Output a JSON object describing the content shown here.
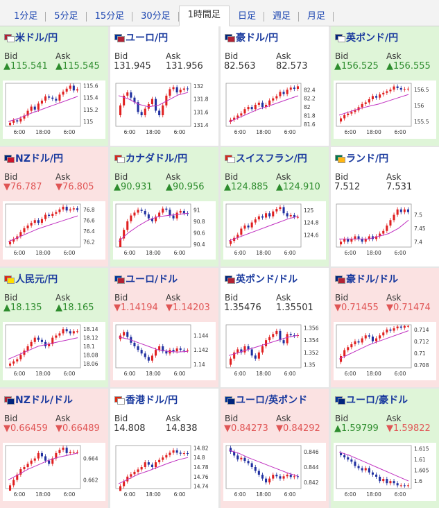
{
  "tabs": [
    {
      "label": "1分足",
      "active": false
    },
    {
      "label": "5分足",
      "active": false
    },
    {
      "label": "15分足",
      "active": false
    },
    {
      "label": "30分足",
      "active": false
    },
    {
      "label": "1時間足",
      "active": true
    },
    {
      "label": "日足",
      "active": false
    },
    {
      "label": "週足",
      "active": false
    },
    {
      "label": "月足",
      "active": false
    }
  ],
  "colors": {
    "up_bg": "#dff5d8",
    "down_bg": "#fbe2e2",
    "flat_bg": "#ffffff",
    "up_text": "#2d8c2d",
    "down_text": "#e05555",
    "title": "#1a3a9e",
    "candle_up": "#e02020",
    "candle_down": "#2030a0",
    "ma_line": "#c030c0"
  },
  "labels": {
    "bid": "Bid",
    "ask": "Ask"
  },
  "tiles": [
    {
      "name": "米ドル/円",
      "bid": "115.541",
      "ask": "115.545",
      "bid_dir": "up",
      "ask_dir": "up",
      "bg": "green",
      "flags": [
        "#b22234",
        "#ffffff"
      ],
      "chart_data": {
        "type": "candlestick",
        "x_ticks": [
          "6:00",
          "18:00",
          "6:00"
        ],
        "y_ticks": [
          "115.6",
          "115.4",
          "115.2",
          "115"
        ],
        "ylim": [
          114.92,
          115.64
        ],
        "closes": [
          114.98,
          115.02,
          115.0,
          115.05,
          115.1,
          115.18,
          115.25,
          115.2,
          115.3,
          115.35,
          115.42,
          115.4,
          115.38,
          115.35,
          115.45,
          115.5,
          115.55,
          115.6,
          115.52,
          115.54
        ],
        "ma": [
          115.0,
          115.05,
          115.12,
          115.18,
          115.24,
          115.3,
          115.36,
          115.42
        ]
      }
    },
    {
      "name": "ユーロ/円",
      "bid": "131.945",
      "ask": "131.956",
      "bid_dir": "flat",
      "ask_dir": "flat",
      "bg": "white",
      "flags": [
        "#003399",
        "#b22234"
      ],
      "chart_data": {
        "type": "candlestick",
        "x_ticks": [
          "6:00",
          "18:00",
          "6:00"
        ],
        "y_ticks": [
          "132",
          "131.8",
          "131.6",
          "131.4"
        ],
        "ylim": [
          131.38,
          132.04
        ],
        "closes": [
          131.7,
          131.85,
          131.9,
          131.82,
          131.75,
          131.6,
          131.55,
          131.65,
          131.72,
          131.8,
          131.62,
          131.55,
          131.7,
          131.85,
          131.95,
          131.98,
          131.9,
          131.94,
          131.96,
          131.95
        ],
        "ma": [
          131.85,
          131.8,
          131.72,
          131.68,
          131.7,
          131.78,
          131.86,
          131.9
        ]
      }
    },
    {
      "name": "豪ドル/円",
      "bid": "82.563",
      "ask": "82.573",
      "bid_dir": "flat",
      "ask_dir": "flat",
      "bg": "white",
      "flags": [
        "#00247d",
        "#b22234"
      ],
      "chart_data": {
        "type": "candlestick",
        "x_ticks": [
          "6:00",
          "18:00",
          "6:00"
        ],
        "y_ticks": [
          "82.4",
          "82.2",
          "82",
          "81.8",
          "81.6"
        ],
        "ylim": [
          81.55,
          82.55
        ],
        "closes": [
          81.7,
          81.75,
          81.8,
          81.85,
          81.95,
          82.0,
          81.95,
          82.05,
          82.1,
          82.0,
          82.05,
          82.15,
          82.2,
          82.25,
          82.35,
          82.3,
          82.4,
          82.45,
          82.42,
          82.48
        ],
        "ma": [
          81.65,
          81.75,
          81.85,
          81.95,
          82.02,
          82.1,
          82.18,
          82.26
        ]
      }
    },
    {
      "name": "英ポンド/円",
      "bid": "156.525",
      "ask": "156.555",
      "bid_dir": "up",
      "ask_dir": "up",
      "bg": "green",
      "flags": [
        "#00247d",
        "#ffffff"
      ],
      "chart_data": {
        "type": "candlestick",
        "x_ticks": [
          "6:00",
          "18:00",
          "6:00"
        ],
        "y_ticks": [
          "156.5",
          "156",
          "155.5"
        ],
        "ylim": [
          155.35,
          156.7
        ],
        "closes": [
          155.6,
          155.7,
          155.75,
          155.8,
          155.85,
          155.95,
          156.05,
          156.1,
          156.2,
          156.3,
          156.25,
          156.35,
          156.4,
          156.45,
          156.5,
          156.6,
          156.55,
          156.5,
          156.52,
          156.53
        ],
        "ma": [
          155.7,
          155.8,
          155.9,
          155.98,
          156.05,
          156.15,
          156.25,
          156.35
        ]
      }
    },
    {
      "name": "NZドル/円",
      "bid": "76.787",
      "ask": "76.805",
      "bid_dir": "down",
      "ask_dir": "down",
      "bg": "red",
      "flags": [
        "#00247d",
        "#cc142b"
      ],
      "chart_data": {
        "type": "candlestick",
        "x_ticks": [
          "6:00",
          "18:00",
          "6:00"
        ],
        "y_ticks": [
          "76.8",
          "76.6",
          "76.4",
          "76.2"
        ],
        "ylim": [
          76.1,
          76.9
        ],
        "closes": [
          76.2,
          76.25,
          76.3,
          76.38,
          76.45,
          76.5,
          76.55,
          76.6,
          76.55,
          76.62,
          76.7,
          76.68,
          76.72,
          76.75,
          76.8,
          76.85,
          76.78,
          76.8,
          76.82,
          76.79
        ],
        "ma": [
          76.2,
          76.28,
          76.36,
          76.44,
          76.5,
          76.56,
          76.62,
          76.68
        ]
      }
    },
    {
      "name": "カナダドル/円",
      "bid": "90.931",
      "ask": "90.956",
      "bid_dir": "up",
      "ask_dir": "up",
      "bg": "green",
      "flags": [
        "#d52b1e",
        "#ffffff"
      ],
      "chart_data": {
        "type": "candlestick",
        "x_ticks": [
          "6:00",
          "18:00",
          "6:00"
        ],
        "y_ticks": [
          "91",
          "90.8",
          "90.6",
          "90.4"
        ],
        "ylim": [
          90.35,
          91.1
        ],
        "closes": [
          90.5,
          90.65,
          90.8,
          90.9,
          90.95,
          91.0,
          90.98,
          90.92,
          90.85,
          90.8,
          90.88,
          90.95,
          91.02,
          91.0,
          90.9,
          90.85,
          90.95,
          90.98,
          90.94,
          90.93
        ],
        "ma": [
          90.45,
          90.6,
          90.72,
          90.82,
          90.88,
          90.9,
          90.92,
          90.94
        ]
      }
    },
    {
      "name": "スイスフラン/円",
      "bid": "124.885",
      "ask": "124.910",
      "bid_dir": "up",
      "ask_dir": "up",
      "bg": "green",
      "flags": [
        "#d52b1e",
        "#ffffff"
      ],
      "chart_data": {
        "type": "candlestick",
        "x_ticks": [
          "6:00",
          "18:00",
          "6:00"
        ],
        "y_ticks": [
          "125",
          "124.8",
          "124.6"
        ],
        "ylim": [
          124.4,
          125.1
        ],
        "closes": [
          124.5,
          124.55,
          124.6,
          124.7,
          124.75,
          124.72,
          124.8,
          124.85,
          124.9,
          124.88,
          124.95,
          124.9,
          124.98,
          125.02,
          125.05,
          124.95,
          124.9,
          124.92,
          124.89,
          124.89
        ],
        "ma": [
          124.5,
          124.56,
          124.62,
          124.68,
          124.74,
          124.8,
          124.86,
          124.9
        ]
      }
    },
    {
      "name": "ランド/円",
      "bid": "7.512",
      "ask": "7.531",
      "bid_dir": "flat",
      "ask_dir": "flat",
      "bg": "white",
      "flags": [
        "#007a4d",
        "#ffb612"
      ],
      "chart_data": {
        "type": "candlestick",
        "x_ticks": [
          "6:00",
          "18:00",
          "6:00"
        ],
        "y_ticks": [
          "7.5",
          "7.45",
          "7.4"
        ],
        "ylim": [
          7.38,
          7.54
        ],
        "closes": [
          7.4,
          7.41,
          7.4,
          7.41,
          7.42,
          7.41,
          7.4,
          7.41,
          7.42,
          7.41,
          7.42,
          7.43,
          7.44,
          7.46,
          7.48,
          7.5,
          7.52,
          7.51,
          7.52,
          7.51
        ],
        "ma": [
          7.41,
          7.41,
          7.41,
          7.41,
          7.42,
          7.43,
          7.45,
          7.48
        ]
      }
    },
    {
      "name": "人民元/円",
      "bid": "18.135",
      "ask": "18.165",
      "bid_dir": "up",
      "ask_dir": "up",
      "bg": "green",
      "flags": [
        "#de2910",
        "#ffde00"
      ],
      "chart_data": {
        "type": "candlestick",
        "x_ticks": [
          "6:00",
          "18:00",
          "6:00"
        ],
        "y_ticks": [
          "18.14",
          "18.12",
          "18.1",
          "18.08",
          "18.06"
        ],
        "ylim": [
          18.05,
          18.15
        ],
        "closes": [
          18.06,
          18.065,
          18.07,
          18.08,
          18.09,
          18.1,
          18.11,
          18.12,
          18.115,
          18.11,
          18.1,
          18.105,
          18.12,
          18.125,
          18.13,
          18.14,
          18.135,
          18.13,
          18.135,
          18.135
        ],
        "ma": [
          18.07,
          18.08,
          18.09,
          18.1,
          18.105,
          18.11,
          18.115,
          18.12
        ]
      }
    },
    {
      "name": "ユーロ/ドル",
      "bid": "1.14194",
      "ask": "1.14203",
      "bid_dir": "down",
      "ask_dir": "down",
      "bg": "red",
      "flags": [
        "#003399",
        "#b22234"
      ],
      "chart_data": {
        "type": "candlestick",
        "x_ticks": [
          "6:00",
          "18:00",
          "6:00"
        ],
        "y_ticks": [
          "1.144",
          "1.142",
          "1.14"
        ],
        "ylim": [
          1.1395,
          1.1455
        ],
        "closes": [
          1.144,
          1.1445,
          1.1438,
          1.143,
          1.1425,
          1.142,
          1.1415,
          1.141,
          1.1405,
          1.1412,
          1.142,
          1.1425,
          1.1418,
          1.1415,
          1.142,
          1.1418,
          1.1422,
          1.142,
          1.1419,
          1.1419
        ],
        "ma": [
          1.1438,
          1.1435,
          1.143,
          1.1425,
          1.142,
          1.1418,
          1.1417,
          1.1418
        ]
      }
    },
    {
      "name": "英ポンド/ドル",
      "bid": "1.35476",
      "ask": "1.35501",
      "bid_dir": "flat",
      "ask_dir": "flat",
      "bg": "white",
      "flags": [
        "#00247d",
        "#b22234"
      ],
      "chart_data": {
        "type": "candlestick",
        "x_ticks": [
          "6:00",
          "18:00",
          "6:00"
        ],
        "y_ticks": [
          "1.356",
          "1.354",
          "1.352",
          "1.35"
        ],
        "ylim": [
          1.3495,
          1.3565
        ],
        "closes": [
          1.351,
          1.352,
          1.3525,
          1.352,
          1.353,
          1.3525,
          1.3515,
          1.351,
          1.352,
          1.353,
          1.354,
          1.3545,
          1.355,
          1.3555,
          1.354,
          1.3535,
          1.355,
          1.3548,
          1.3547,
          1.3548
        ],
        "ma": [
          1.3515,
          1.352,
          1.3525,
          1.353,
          1.3535,
          1.354,
          1.3545,
          1.3548
        ]
      }
    },
    {
      "name": "豪ドル/ドル",
      "bid": "0.71455",
      "ask": "0.71474",
      "bid_dir": "down",
      "ask_dir": "down",
      "bg": "red",
      "flags": [
        "#00247d",
        "#b22234"
      ],
      "chart_data": {
        "type": "candlestick",
        "x_ticks": [
          "6:00",
          "18:00",
          "6:00"
        ],
        "y_ticks": [
          "0.714",
          "0.712",
          "0.71",
          "0.708"
        ],
        "ylim": [
          0.7075,
          0.7148
        ],
        "closes": [
          0.7095,
          0.7105,
          0.711,
          0.7115,
          0.712,
          0.7118,
          0.7125,
          0.713,
          0.7128,
          0.712,
          0.7125,
          0.713,
          0.7135,
          0.714,
          0.7138,
          0.7142,
          0.7145,
          0.7143,
          0.7146,
          0.7146
        ],
        "ma": [
          0.709,
          0.7098,
          0.7106,
          0.7114,
          0.712,
          0.7126,
          0.7132,
          0.7138
        ]
      }
    },
    {
      "name": "NZドル/ドル",
      "bid": "0.66459",
      "ask": "0.66489",
      "bid_dir": "down",
      "ask_dir": "down",
      "bg": "red",
      "flags": [
        "#b22234",
        "#00247d"
      ],
      "chart_data": {
        "type": "candlestick",
        "x_ticks": [
          "6:00",
          "18:00",
          "6:00"
        ],
        "y_ticks": [
          "0.664",
          "0.662"
        ],
        "ylim": [
          0.6612,
          0.6652
        ],
        "closes": [
          0.6615,
          0.662,
          0.6625,
          0.663,
          0.6632,
          0.6635,
          0.6638,
          0.664,
          0.6645,
          0.6642,
          0.6638,
          0.6635,
          0.664,
          0.6645,
          0.6648,
          0.665,
          0.6645,
          0.6646,
          0.6646,
          0.6646
        ],
        "ma": [
          0.662,
          0.6625,
          0.663,
          0.6634,
          0.6638,
          0.6641,
          0.6643,
          0.6645
        ]
      }
    },
    {
      "name": "香港ドル/円",
      "bid": "14.808",
      "ask": "14.838",
      "bid_dir": "flat",
      "ask_dir": "flat",
      "bg": "white",
      "flags": [
        "#de2910",
        "#ffffff"
      ],
      "chart_data": {
        "type": "candlestick",
        "x_ticks": [
          "6:00",
          "18:00",
          "6:00"
        ],
        "y_ticks": [
          "14.82",
          "14.8",
          "14.78",
          "14.76",
          "14.74"
        ],
        "ylim": [
          14.735,
          14.825
        ],
        "closes": [
          14.74,
          14.75,
          14.76,
          14.765,
          14.77,
          14.775,
          14.78,
          14.79,
          14.785,
          14.78,
          14.79,
          14.795,
          14.8,
          14.805,
          14.81,
          14.815,
          14.81,
          14.808,
          14.809,
          14.808
        ],
        "ma": [
          14.745,
          14.755,
          14.765,
          14.772,
          14.78,
          14.788,
          14.795,
          14.8
        ]
      }
    },
    {
      "name": "ユーロ/英ポンド",
      "bid": "0.84273",
      "ask": "0.84292",
      "bid_dir": "down",
      "ask_dir": "down",
      "bg": "red",
      "flags": [
        "#003399",
        "#00247d"
      ],
      "chart_data": {
        "type": "candlestick",
        "x_ticks": [
          "6:00",
          "18:00",
          "6:00"
        ],
        "y_ticks": [
          "0.846",
          "0.844",
          "0.842"
        ],
        "ylim": [
          0.8412,
          0.8468
        ],
        "closes": [
          0.846,
          0.8455,
          0.845,
          0.8452,
          0.8448,
          0.8445,
          0.844,
          0.8435,
          0.843,
          0.8425,
          0.842,
          0.8425,
          0.843,
          0.8428,
          0.8425,
          0.8428,
          0.843,
          0.8427,
          0.8428,
          0.8427
        ],
        "ma": [
          0.8462,
          0.8458,
          0.8452,
          0.8447,
          0.8442,
          0.8437,
          0.8432,
          0.8428
        ]
      }
    },
    {
      "name": "ユーロ/豪ドル",
      "bid": "1.59799",
      "ask": "1.59822",
      "bid_dir": "up",
      "ask_dir": "down",
      "bg": "green",
      "flags": [
        "#003399",
        "#00247d"
      ],
      "chart_data": {
        "type": "candlestick",
        "x_ticks": [
          "6:00",
          "18:00",
          "6:00"
        ],
        "y_ticks": [
          "1.615",
          "1.61",
          "1.605",
          "1.6"
        ],
        "ylim": [
          1.5965,
          1.6165
        ],
        "closes": [
          1.612,
          1.611,
          1.61,
          1.609,
          1.607,
          1.606,
          1.605,
          1.606,
          1.604,
          1.603,
          1.602,
          1.6,
          1.601,
          1.599,
          1.6,
          1.599,
          1.598,
          1.598,
          1.5979,
          1.598
        ],
        "ma": [
          1.6135,
          1.612,
          1.61,
          1.608,
          1.606,
          1.604,
          1.602,
          1.6
        ]
      }
    }
  ]
}
